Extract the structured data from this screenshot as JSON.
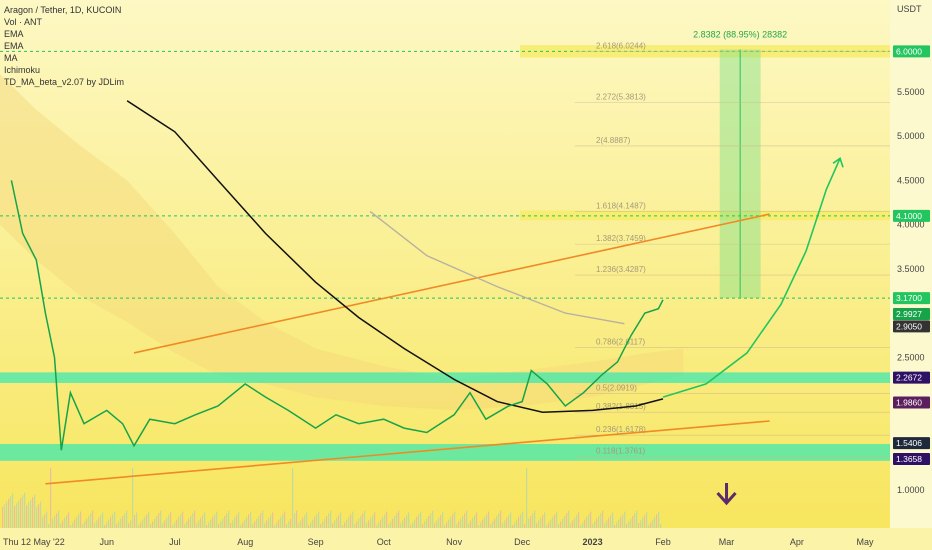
{
  "legend": {
    "title": "Aragon / Tether, 1D, KUCOIN",
    "indicators": [
      "Vol · ANT",
      "EMA",
      "EMA",
      "MA",
      "Ichimoku",
      "TD_MA_beta_v2.07 by JDLim"
    ]
  },
  "currency_label": "USDT",
  "chart_data": {
    "type": "line",
    "symbol": "ANT/USDT",
    "y_ticks": [
      1.0,
      1.5,
      2.0,
      2.5,
      3.0,
      3.5,
      4.0,
      4.5,
      5.0,
      5.5
    ],
    "y_tick_labels": [
      "1.0000",
      "1.5000",
      "2.0000",
      "2.5000",
      "3.0000",
      "3.5000",
      "4.0000",
      "4.5000",
      "5.0000",
      "5.5000"
    ],
    "x_ticks": [
      {
        "label": "Thu 12 May '22",
        "date": "2022-05-12"
      },
      {
        "label": "Jun",
        "date": "2022-06-01"
      },
      {
        "label": "Jul",
        "date": "2022-07-01"
      },
      {
        "label": "Aug",
        "date": "2022-08-01"
      },
      {
        "label": "Sep",
        "date": "2022-09-01"
      },
      {
        "label": "Oct",
        "date": "2022-10-01"
      },
      {
        "label": "Nov",
        "date": "2022-11-01"
      },
      {
        "label": "Dec",
        "date": "2022-12-01"
      },
      {
        "label": "2023",
        "date": "2023-01-01"
      },
      {
        "label": "Feb",
        "date": "2023-02-01"
      },
      {
        "label": "Mar",
        "date": "2023-03-01"
      },
      {
        "label": "Apr",
        "date": "2023-04-01"
      },
      {
        "label": "May",
        "date": "2023-05-01"
      }
    ],
    "price_series": [
      [
        "2022-04-20",
        4.5
      ],
      [
        "2022-04-25",
        3.9
      ],
      [
        "2022-05-01",
        3.6
      ],
      [
        "2022-05-05",
        3.0
      ],
      [
        "2022-05-09",
        2.5
      ],
      [
        "2022-05-12",
        1.45
      ],
      [
        "2022-05-16",
        2.1
      ],
      [
        "2022-05-22",
        1.75
      ],
      [
        "2022-06-01",
        1.9
      ],
      [
        "2022-06-08",
        1.75
      ],
      [
        "2022-06-13",
        1.5
      ],
      [
        "2022-06-20",
        1.8
      ],
      [
        "2022-07-01",
        1.75
      ],
      [
        "2022-07-10",
        1.85
      ],
      [
        "2022-07-20",
        1.95
      ],
      [
        "2022-08-01",
        2.2
      ],
      [
        "2022-08-10",
        2.05
      ],
      [
        "2022-08-20",
        1.9
      ],
      [
        "2022-09-01",
        1.7
      ],
      [
        "2022-09-10",
        1.85
      ],
      [
        "2022-09-20",
        1.75
      ],
      [
        "2022-10-01",
        1.8
      ],
      [
        "2022-10-10",
        1.7
      ],
      [
        "2022-10-20",
        1.65
      ],
      [
        "2022-11-01",
        1.85
      ],
      [
        "2022-11-08",
        2.1
      ],
      [
        "2022-11-15",
        1.8
      ],
      [
        "2022-11-25",
        1.95
      ],
      [
        "2022-12-01",
        2.0
      ],
      [
        "2022-12-05",
        2.35
      ],
      [
        "2022-12-12",
        2.2
      ],
      [
        "2022-12-20",
        1.95
      ],
      [
        "2022-12-28",
        2.1
      ],
      [
        "2023-01-05",
        2.3
      ],
      [
        "2023-01-12",
        2.45
      ],
      [
        "2023-01-18",
        2.75
      ],
      [
        "2023-01-24",
        3.0
      ],
      [
        "2023-01-30",
        3.05
      ],
      [
        "2023-02-01",
        3.15
      ]
    ],
    "ema_black": [
      [
        "2022-06-10",
        5.4
      ],
      [
        "2022-07-01",
        5.05
      ],
      [
        "2022-07-20",
        4.5
      ],
      [
        "2022-08-10",
        3.9
      ],
      [
        "2022-09-01",
        3.35
      ],
      [
        "2022-09-20",
        2.95
      ],
      [
        "2022-10-10",
        2.6
      ],
      [
        "2022-11-01",
        2.25
      ],
      [
        "2022-11-20",
        2.0
      ],
      [
        "2022-12-10",
        1.88
      ],
      [
        "2023-01-01",
        1.9
      ],
      [
        "2023-01-20",
        1.95
      ],
      [
        "2023-02-01",
        2.03
      ]
    ],
    "ma_grey": [
      [
        "2022-09-25",
        4.15
      ],
      [
        "2022-10-20",
        3.65
      ],
      [
        "2022-11-20",
        3.3
      ],
      [
        "2022-12-20",
        3.0
      ],
      [
        "2023-01-15",
        2.88
      ]
    ],
    "projection_arrow": [
      [
        "2023-02-01",
        2.05
      ],
      [
        "2023-02-20",
        2.2
      ],
      [
        "2023-03-10",
        2.55
      ],
      [
        "2023-03-25",
        3.1
      ],
      [
        "2023-04-05",
        3.7
      ],
      [
        "2023-04-14",
        4.4
      ],
      [
        "2023-04-20",
        4.75
      ]
    ],
    "trendlines": [
      {
        "name": "upper",
        "from": [
          "2022-06-13",
          2.55
        ],
        "to": [
          "2023-03-20",
          4.12
        ],
        "color": "#f08a24"
      },
      {
        "name": "lower",
        "from": [
          "2022-05-05",
          1.07
        ],
        "to": [
          "2023-03-20",
          1.78
        ],
        "color": "#f08a24"
      }
    ],
    "fib_levels": [
      {
        "label": "2.618(6.0244)",
        "price": 5.96
      },
      {
        "label": "2.272(5.3813)",
        "price": 5.38
      },
      {
        "label": "2(4.8887)",
        "price": 4.89
      },
      {
        "label": "1.618(4.1487)",
        "price": 4.15
      },
      {
        "label": "1.382(3.7459)",
        "price": 3.78
      },
      {
        "label": "1.236(3.4287)",
        "price": 3.43
      },
      {
        "label": "0.786(2.6117)",
        "price": 2.61
      },
      {
        "label": "0.5(2.0919)",
        "price": 2.09
      },
      {
        "label": "0.382(1.8815)",
        "price": 1.88
      },
      {
        "label": "0.236(1.6178)",
        "price": 1.62
      },
      {
        "label": "0.118(1.3761)",
        "price": 1.38
      }
    ],
    "horizontal_lines": [
      {
        "price": 5.96,
        "color": "#22c55e"
      },
      {
        "price": 4.1,
        "color": "#22c55e"
      },
      {
        "price": 3.17,
        "color": "#22c55e"
      }
    ],
    "zones": [
      {
        "low": 2.21,
        "high": 2.33,
        "color": "#3ee8b0"
      },
      {
        "low": 1.33,
        "high": 1.52,
        "color": "#3ee8b0"
      },
      {
        "low": 5.89,
        "high": 6.03,
        "color": "#f5ec6a"
      },
      {
        "low": 4.05,
        "high": 4.16,
        "color": "#f5ec6a"
      }
    ],
    "target_box": {
      "from": "2023-02-26",
      "to": "2023-03-16",
      "low": 3.17,
      "high": 5.98,
      "label": "2.8382 (88.95%) 28382"
    },
    "price_labels": [
      {
        "text": "6.0000",
        "price": 5.96,
        "bg": "#22c55e",
        "fg": "#ffffff"
      },
      {
        "text": "4.1000",
        "price": 4.1,
        "bg": "#22c55e",
        "fg": "#ffffff"
      },
      {
        "text": "3.1700",
        "price": 3.17,
        "bg": "#22c55e",
        "fg": "#ffffff"
      },
      {
        "text": "2.9927",
        "price": 2.99,
        "bg": "#16a34a",
        "fg": "#ffffff"
      },
      {
        "text": "2.9050",
        "price": 2.85,
        "bg": "#333333",
        "fg": "#ffffff"
      },
      {
        "text": "2.2672",
        "price": 2.27,
        "bg": "#2e1065",
        "fg": "#ffffff"
      },
      {
        "text": "1.9860",
        "price": 1.99,
        "bg": "#5b1f5e",
        "fg": "#ffffff"
      },
      {
        "text": "1.5406",
        "price": 1.53,
        "bg": "#1e293b",
        "fg": "#ffffff"
      },
      {
        "text": "1.3658",
        "price": 1.35,
        "bg": "#2e1065",
        "fg": "#ffffff"
      }
    ],
    "down_arrow": {
      "date": "2023-03-01",
      "color": "#5b2a6b"
    }
  }
}
